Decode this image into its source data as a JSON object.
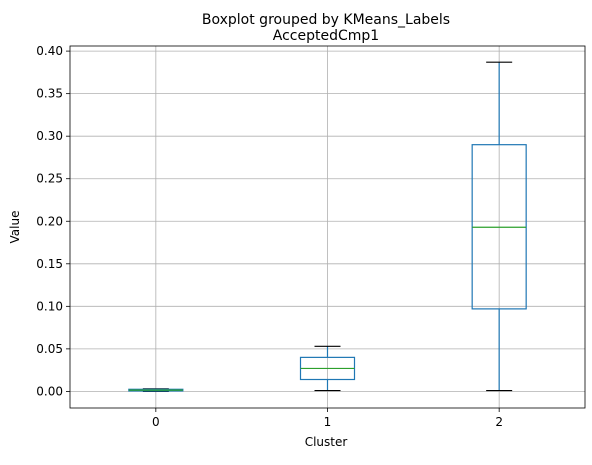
{
  "chart_data": {
    "type": "boxplot",
    "suptitle": "Boxplot grouped by KMeans_Labels",
    "title": "AcceptedCmp1",
    "xlabel": "Cluster",
    "ylabel": "Value",
    "categories": [
      "0",
      "1",
      "2"
    ],
    "boxes": [
      {
        "category": "0",
        "whisker_low": 0.0,
        "q1": 0.0005,
        "median": 0.0015,
        "q3": 0.0025,
        "whisker_high": 0.003
      },
      {
        "category": "1",
        "whisker_low": 0.001,
        "q1": 0.014,
        "median": 0.027,
        "q3": 0.04,
        "whisker_high": 0.053
      },
      {
        "category": "2",
        "whisker_low": 0.001,
        "q1": 0.097,
        "median": 0.193,
        "q3": 0.29,
        "whisker_high": 0.387
      }
    ],
    "ylim": [
      -0.0195,
      0.406
    ],
    "yticks": [
      "0.00",
      "0.05",
      "0.10",
      "0.15",
      "0.20",
      "0.25",
      "0.30",
      "0.35",
      "0.40"
    ],
    "grid": true,
    "colors": {
      "box": "#1f77b4",
      "median": "#2ca02c",
      "whisker_cap": "#000000",
      "grid": "#b0b0b0"
    }
  }
}
